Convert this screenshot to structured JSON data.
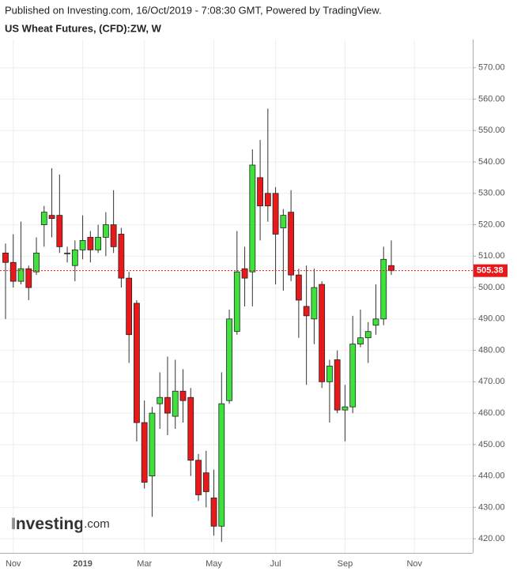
{
  "header": {
    "published": "Published on Investing.com, 16/Oct/2019 - 7:08:30 GMT, Powered by TradingView."
  },
  "logo": {
    "name": "Investing",
    "suffix": ".com"
  },
  "chart_data": {
    "type": "candlestick",
    "title": "US Wheat Futures, (CFD):ZW, W",
    "categories": [
      null,
      "Nov",
      null,
      null,
      null,
      null,
      null,
      null,
      null,
      null,
      "2019",
      null,
      null,
      null,
      null,
      null,
      null,
      null,
      "Mar",
      null,
      null,
      null,
      null,
      null,
      null,
      null,
      null,
      "May",
      null,
      null,
      null,
      null,
      null,
      null,
      null,
      "Jul",
      null,
      null,
      null,
      null,
      null,
      null,
      null,
      null,
      "Sep",
      null,
      null,
      null,
      null,
      null,
      null,
      null,
      null,
      "Nov"
    ],
    "open": [
      511,
      508,
      502,
      506,
      505,
      520,
      523,
      523,
      511,
      507,
      512,
      516,
      512,
      516,
      520,
      517,
      503,
      495,
      457,
      440,
      463,
      465,
      459,
      467,
      465,
      445,
      441,
      433,
      424,
      464,
      486,
      506,
      505,
      535,
      530,
      530,
      519,
      524,
      504,
      494,
      490,
      501,
      470,
      477,
      461,
      462,
      482,
      484,
      488,
      490,
      507,
      null,
      null,
      null
    ],
    "high": [
      514,
      517,
      521,
      507,
      516,
      526,
      538,
      536,
      513,
      515,
      523,
      518,
      520,
      524,
      531,
      519,
      505,
      496,
      464,
      462,
      473,
      478,
      477,
      474,
      468,
      447,
      448,
      442,
      473,
      493,
      518,
      513,
      544,
      547,
      557,
      532,
      525,
      531,
      506,
      507,
      506,
      502,
      477,
      480,
      469,
      491,
      493,
      489,
      501,
      513,
      515,
      null,
      null,
      null
    ],
    "low": [
      490,
      500,
      501,
      496,
      504,
      513,
      516,
      511,
      508,
      502,
      509,
      508,
      511,
      510,
      511,
      500,
      476,
      451,
      436,
      427,
      455,
      453,
      455,
      457,
      440,
      432,
      430,
      421,
      419,
      463,
      485,
      494,
      494,
      515,
      521,
      501,
      499,
      502,
      484,
      469,
      482,
      468,
      457,
      460,
      451,
      460,
      481,
      476,
      485,
      488,
      504,
      null,
      null,
      null
    ],
    "close": [
      508,
      502,
      506,
      500,
      511,
      524,
      522,
      513,
      511,
      512,
      515,
      512,
      516,
      520,
      513,
      503,
      485,
      457,
      438,
      460,
      465,
      460,
      467,
      464,
      445,
      434,
      435,
      424,
      463,
      490,
      505,
      503,
      539,
      526,
      526,
      517,
      523,
      504,
      496,
      491,
      500,
      470,
      475,
      461,
      462,
      482,
      484,
      486,
      490,
      509,
      505.38,
      null,
      null,
      null
    ],
    "up_color": "#3ee23a",
    "down_color": "#e8191b",
    "last_price": 505.38,
    "ylim": [
      415.5,
      579
    ],
    "yticks": [
      {
        "value": 420,
        "label": "420.00"
      },
      {
        "value": 430,
        "label": "430.00"
      },
      {
        "value": 440,
        "label": "440.00"
      },
      {
        "value": 450,
        "label": "450.00"
      },
      {
        "value": 460,
        "label": "460.00"
      },
      {
        "value": 470,
        "label": "470.00"
      },
      {
        "value": 480,
        "label": "480.00"
      },
      {
        "value": 490,
        "label": "490.00"
      },
      {
        "value": 500,
        "label": "500.00"
      },
      {
        "value": 510,
        "label": "510.00"
      },
      {
        "value": 520,
        "label": "520.00"
      },
      {
        "value": 530,
        "label": "530.00"
      },
      {
        "value": 540,
        "label": "540.00"
      },
      {
        "value": 550,
        "label": "550.00"
      },
      {
        "value": 560,
        "label": "560.00"
      },
      {
        "value": 570,
        "label": "570.00"
      }
    ],
    "grid": true
  }
}
